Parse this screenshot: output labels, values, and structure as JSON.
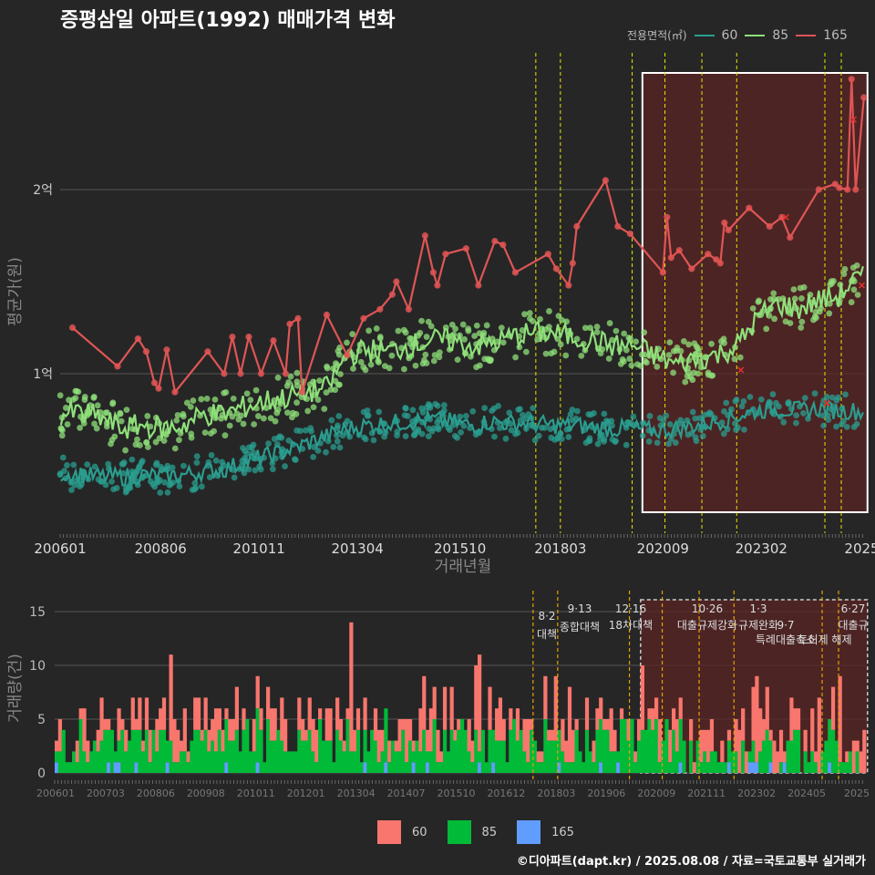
{
  "title": "증평삼일 아파트(1992) 매매가격 변화",
  "caption": "©디아파트(dapt.kr) / 2025.08.08 / 자료=국토교통부 실거래가",
  "colors": {
    "background": "#262626",
    "grid": "#555555",
    "line_60": "#2a9d8f",
    "line_85": "#8fe07a",
    "line_165": "#e05555",
    "bar_60": "#f8766d",
    "bar_85": "#00ba38",
    "bar_165": "#619cff",
    "vline": "#e6e600",
    "vline_bottom": "#e6a100",
    "highlight_fill": "#5a2424",
    "highlight_stroke": "#ffffff"
  },
  "chart_data": [
    {
      "type": "line",
      "name": "price",
      "xlabel": "거래년월",
      "ylabel": "평균가(원)",
      "x_ticks": [
        "200601",
        "200806",
        "201011",
        "201304",
        "201510",
        "201803",
        "202009",
        "202302",
        "2025"
      ],
      "y_ticks": [
        {
          "value": 1.0,
          "label": "1억"
        },
        {
          "value": 2.0,
          "label": "2억"
        }
      ],
      "ylim": [
        0.8,
        2.6
      ],
      "xlim": [
        2006.0,
        2025.65
      ],
      "legend_title": "전용면적(㎡)",
      "legend": [
        {
          "name": "60",
          "color": "#2a9d8f"
        },
        {
          "name": "85",
          "color": "#8fe07a"
        },
        {
          "name": "165",
          "color": "#e05555"
        }
      ],
      "series": [
        {
          "name": "165",
          "points": [
            [
              2006.3,
              1.25
            ],
            [
              2007.4,
              1.04
            ],
            [
              2007.9,
              1.19
            ],
            [
              2008.1,
              1.12
            ],
            [
              2008.3,
              0.95
            ],
            [
              2008.4,
              0.92
            ],
            [
              2008.6,
              1.13
            ],
            [
              2008.8,
              0.9
            ],
            [
              2009.6,
              1.12
            ],
            [
              2010.0,
              1.0
            ],
            [
              2010.2,
              1.2
            ],
            [
              2010.4,
              1.0
            ],
            [
              2010.6,
              1.2
            ],
            [
              2010.9,
              1.0
            ],
            [
              2011.2,
              1.18
            ],
            [
              2011.5,
              1.0
            ],
            [
              2011.6,
              1.27
            ],
            [
              2011.8,
              1.3
            ],
            [
              2011.9,
              0.9
            ],
            [
              2012.5,
              1.32
            ],
            [
              2013.0,
              1.1
            ],
            [
              2013.4,
              1.3
            ],
            [
              2013.8,
              1.35
            ],
            [
              2014.1,
              1.43
            ],
            [
              2014.2,
              1.5
            ],
            [
              2014.5,
              1.35
            ],
            [
              2014.9,
              1.75
            ],
            [
              2015.1,
              1.55
            ],
            [
              2015.2,
              1.48
            ],
            [
              2015.4,
              1.65
            ],
            [
              2015.9,
              1.68
            ],
            [
              2016.2,
              1.48
            ],
            [
              2016.6,
              1.72
            ],
            [
              2016.8,
              1.7
            ],
            [
              2017.1,
              1.55
            ],
            [
              2017.9,
              1.65
            ],
            [
              2018.1,
              1.57
            ],
            [
              2018.4,
              1.48
            ],
            [
              2018.5,
              1.6
            ],
            [
              2018.6,
              1.8
            ],
            [
              2019.3,
              2.05
            ],
            [
              2019.6,
              1.8
            ],
            [
              2019.9,
              1.76
            ],
            [
              2020.7,
              1.55
            ],
            [
              2020.8,
              1.85
            ],
            [
              2020.9,
              1.63
            ],
            [
              2021.1,
              1.67
            ],
            [
              2021.4,
              1.57
            ],
            [
              2021.8,
              1.65
            ],
            [
              2022.0,
              1.62
            ],
            [
              2022.1,
              1.6
            ],
            [
              2022.2,
              1.82
            ],
            [
              2022.3,
              1.78
            ],
            [
              2022.8,
              1.9
            ],
            [
              2023.3,
              1.8
            ],
            [
              2023.6,
              1.85
            ],
            [
              2023.8,
              1.74
            ],
            [
              2024.5,
              2.0
            ],
            [
              2024.9,
              2.03
            ],
            [
              2025.0,
              2.01
            ],
            [
              2025.2,
              2.0
            ],
            [
              2025.3,
              2.6
            ],
            [
              2025.4,
              2.0
            ],
            [
              2025.6,
              2.5
            ]
          ],
          "markers": [
            [
              2022.6,
              1.02
            ],
            [
              2023.7,
              1.85
            ],
            [
              2024.7,
              0.84
            ],
            [
              2025.35,
              2.38
            ],
            [
              2025.55,
              1.48
            ]
          ]
        },
        {
          "name": "85",
          "trend": [
            [
              2006.0,
              0.78
            ],
            [
              2006.5,
              0.79
            ],
            [
              2007.0,
              0.76
            ],
            [
              2007.5,
              0.7
            ],
            [
              2008.0,
              0.72
            ],
            [
              2008.5,
              0.7
            ],
            [
              2009.0,
              0.72
            ],
            [
              2009.5,
              0.78
            ],
            [
              2010.0,
              0.78
            ],
            [
              2010.5,
              0.82
            ],
            [
              2011.0,
              0.85
            ],
            [
              2011.5,
              0.87
            ],
            [
              2012.0,
              0.9
            ],
            [
              2012.5,
              0.92
            ],
            [
              2013.0,
              1.1
            ],
            [
              2013.5,
              1.13
            ],
            [
              2014.0,
              1.12
            ],
            [
              2014.5,
              1.15
            ],
            [
              2015.0,
              1.18
            ],
            [
              2015.5,
              1.18
            ],
            [
              2016.0,
              1.15
            ],
            [
              2016.5,
              1.16
            ],
            [
              2017.0,
              1.2
            ],
            [
              2017.5,
              1.22
            ],
            [
              2018.0,
              1.22
            ],
            [
              2018.5,
              1.2
            ],
            [
              2019.0,
              1.18
            ],
            [
              2019.5,
              1.15
            ],
            [
              2020.0,
              1.15
            ],
            [
              2020.5,
              1.1
            ],
            [
              2021.0,
              1.05
            ],
            [
              2021.5,
              1.08
            ],
            [
              2022.0,
              1.1
            ],
            [
              2022.5,
              1.15
            ],
            [
              2023.0,
              1.3
            ],
            [
              2023.5,
              1.38
            ],
            [
              2024.0,
              1.35
            ],
            [
              2024.5,
              1.4
            ],
            [
              2025.0,
              1.42
            ],
            [
              2025.3,
              1.5
            ],
            [
              2025.6,
              1.52
            ]
          ]
        },
        {
          "name": "60",
          "trend": [
            [
              2006.0,
              0.46
            ],
            [
              2006.5,
              0.45
            ],
            [
              2007.0,
              0.44
            ],
            [
              2007.5,
              0.44
            ],
            [
              2008.0,
              0.45
            ],
            [
              2008.5,
              0.44
            ],
            [
              2009.0,
              0.45
            ],
            [
              2009.5,
              0.47
            ],
            [
              2010.0,
              0.48
            ],
            [
              2010.5,
              0.52
            ],
            [
              2011.0,
              0.55
            ],
            [
              2011.5,
              0.58
            ],
            [
              2012.0,
              0.62
            ],
            [
              2012.5,
              0.66
            ],
            [
              2013.0,
              0.7
            ],
            [
              2013.5,
              0.72
            ],
            [
              2014.0,
              0.73
            ],
            [
              2014.5,
              0.74
            ],
            [
              2015.0,
              0.75
            ],
            [
              2015.5,
              0.74
            ],
            [
              2016.0,
              0.72
            ],
            [
              2016.5,
              0.74
            ],
            [
              2017.0,
              0.73
            ],
            [
              2017.5,
              0.73
            ],
            [
              2018.0,
              0.72
            ],
            [
              2018.5,
              0.72
            ],
            [
              2019.0,
              0.71
            ],
            [
              2019.5,
              0.7
            ],
            [
              2020.0,
              0.7
            ],
            [
              2020.5,
              0.69
            ],
            [
              2021.0,
              0.7
            ],
            [
              2021.5,
              0.72
            ],
            [
              2022.0,
              0.74
            ],
            [
              2022.5,
              0.77
            ],
            [
              2023.0,
              0.8
            ],
            [
              2023.5,
              0.81
            ],
            [
              2024.0,
              0.8
            ],
            [
              2024.5,
              0.81
            ],
            [
              2025.0,
              0.8
            ],
            [
              2025.3,
              0.8
            ],
            [
              2025.6,
              0.79
            ]
          ]
        }
      ],
      "vlines": [
        2017.6,
        2018.2,
        2019.95,
        2020.75,
        2021.65,
        2022.5,
        2024.65,
        2025.05
      ],
      "highlight": {
        "from": 2020.2,
        "to": 2025.6
      }
    },
    {
      "type": "bar",
      "name": "volume",
      "ylabel": "거래량(건)",
      "y_ticks": [
        0,
        5,
        10,
        15
      ],
      "ylim": [
        0,
        16
      ],
      "x_ticks": [
        "200601",
        "200703",
        "200806",
        "200908",
        "201011",
        "201201",
        "201304",
        "201407",
        "201510",
        "201612",
        "201803",
        "201906",
        "202009",
        "202111",
        "202302",
        "202405",
        "2025"
      ],
      "legend": [
        {
          "name": "60",
          "color": "#f8766d"
        },
        {
          "name": "85",
          "color": "#00ba38"
        },
        {
          "name": "165",
          "color": "#619cff"
        }
      ],
      "annotations": [
        {
          "date": "8·2",
          "text": "대책"
        },
        {
          "date": "9·13",
          "text": "종합대책"
        },
        {
          "date": "12·16",
          "text": "18차대책"
        },
        {
          "date": "10·26",
          "text": "대출규제강화"
        },
        {
          "date": "1·3",
          "text": "규제완화"
        },
        {
          "date": "9·7",
          "text": "특례대출축소"
        },
        {
          "date": "",
          "text": "토허제 해제"
        },
        {
          "date": "6·27",
          "text": "대출규"
        }
      ],
      "peak_month_total": 16
    }
  ]
}
